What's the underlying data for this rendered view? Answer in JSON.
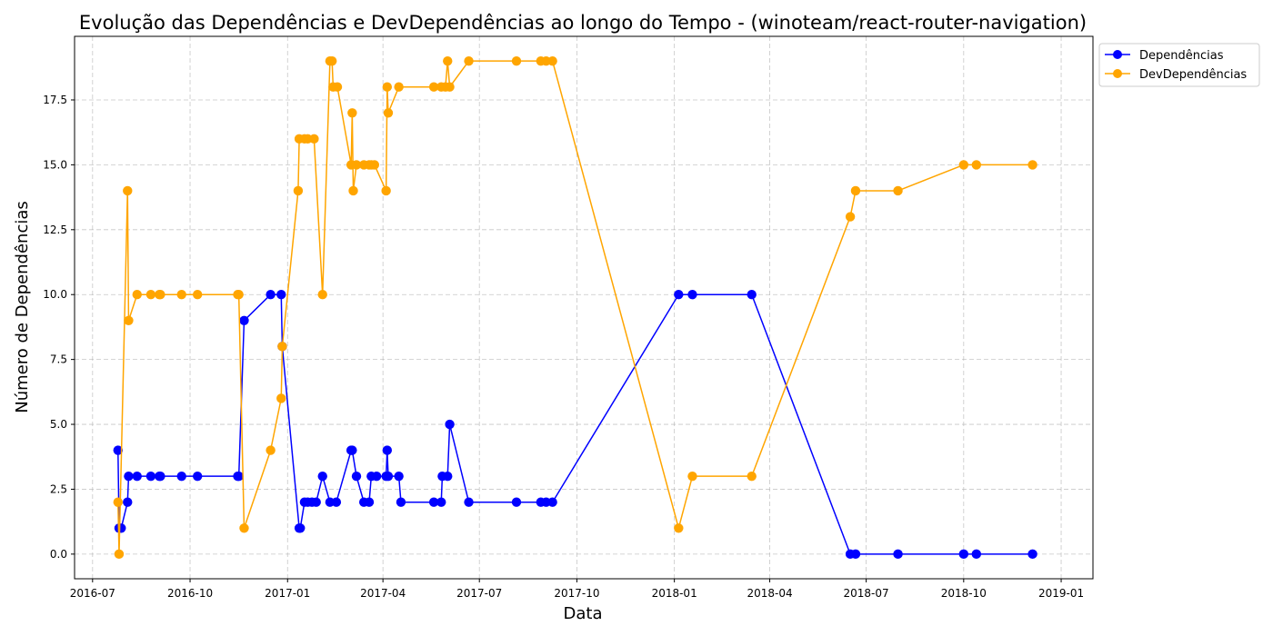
{
  "chart_data": {
    "type": "line",
    "title": "Evolução das Dependências e DevDependências ao longo do Tempo - (winoteam/react-router-navigation)",
    "xlabel": "Data",
    "ylabel": "Número de Dependências",
    "xlim": [
      "2016-06-14",
      "2019-01-31"
    ],
    "ylim": [
      -0.95,
      19.95
    ],
    "x_ticks": [
      "2016-07-01",
      "2016-10-01",
      "2017-01-01",
      "2017-04-01",
      "2017-07-01",
      "2017-10-01",
      "2018-01-01",
      "2018-04-01",
      "2018-07-01",
      "2018-10-01",
      "2019-01-01"
    ],
    "x_tick_labels": [
      "2016-07",
      "2016-10",
      "2017-01",
      "2017-04",
      "2017-07",
      "2017-10",
      "2018-01",
      "2018-04",
      "2018-07",
      "2018-10",
      "2019-01"
    ],
    "y_ticks": [
      0,
      2.5,
      5,
      7.5,
      10,
      12.5,
      15,
      17.5
    ],
    "y_tick_labels": [
      "0.0",
      "2.5",
      "5.0",
      "7.5",
      "10.0",
      "12.5",
      "15.0",
      "17.5"
    ],
    "grid": true,
    "legend_position": "outside-top-right",
    "series": [
      {
        "name": "Dependências",
        "color": "#0000ff",
        "points": [
          [
            "2016-07-25",
            4
          ],
          [
            "2016-07-26",
            1
          ],
          [
            "2016-07-28",
            1
          ],
          [
            "2016-08-03",
            2
          ],
          [
            "2016-08-04",
            3
          ],
          [
            "2016-08-12",
            3
          ],
          [
            "2016-08-25",
            3
          ],
          [
            "2016-09-02",
            3
          ],
          [
            "2016-09-03",
            3
          ],
          [
            "2016-09-23",
            3
          ],
          [
            "2016-10-08",
            3
          ],
          [
            "2016-11-15",
            3
          ],
          [
            "2016-11-16",
            3
          ],
          [
            "2016-11-21",
            9
          ],
          [
            "2016-12-16",
            10
          ],
          [
            "2016-12-26",
            10
          ],
          [
            "2016-12-27",
            8
          ],
          [
            "2017-01-12",
            1
          ],
          [
            "2017-01-13",
            1
          ],
          [
            "2017-01-17",
            2
          ],
          [
            "2017-01-20",
            2
          ],
          [
            "2017-01-24",
            2
          ],
          [
            "2017-01-28",
            2
          ],
          [
            "2017-02-03",
            3
          ],
          [
            "2017-02-10",
            2
          ],
          [
            "2017-02-16",
            2
          ],
          [
            "2017-03-02",
            4
          ],
          [
            "2017-03-03",
            4
          ],
          [
            "2017-03-07",
            3
          ],
          [
            "2017-03-14",
            2
          ],
          [
            "2017-03-19",
            2
          ],
          [
            "2017-03-21",
            3
          ],
          [
            "2017-03-26",
            3
          ],
          [
            "2017-04-04",
            3
          ],
          [
            "2017-04-05",
            4
          ],
          [
            "2017-04-06",
            3
          ],
          [
            "2017-04-16",
            3
          ],
          [
            "2017-04-18",
            2
          ],
          [
            "2017-05-19",
            2
          ],
          [
            "2017-05-26",
            2
          ],
          [
            "2017-05-27",
            3
          ],
          [
            "2017-06-01",
            3
          ],
          [
            "2017-06-03",
            5
          ],
          [
            "2017-06-21",
            2
          ],
          [
            "2017-08-05",
            2
          ],
          [
            "2017-08-28",
            2
          ],
          [
            "2017-09-02",
            2
          ],
          [
            "2017-09-08",
            2
          ],
          [
            "2018-01-05",
            10
          ],
          [
            "2018-01-18",
            10
          ],
          [
            "2018-03-15",
            10
          ],
          [
            "2018-06-16",
            0
          ],
          [
            "2018-06-21",
            0
          ],
          [
            "2018-07-31",
            0
          ],
          [
            "2018-10-01",
            0
          ],
          [
            "2018-10-13",
            0
          ],
          [
            "2018-12-05",
            0
          ]
        ]
      },
      {
        "name": "DevDependências",
        "color": "#ffa500",
        "points": [
          [
            "2016-07-25",
            2
          ],
          [
            "2016-07-26",
            0
          ],
          [
            "2016-08-03",
            14
          ],
          [
            "2016-08-04",
            9
          ],
          [
            "2016-08-12",
            10
          ],
          [
            "2016-08-25",
            10
          ],
          [
            "2016-09-02",
            10
          ],
          [
            "2016-09-03",
            10
          ],
          [
            "2016-09-23",
            10
          ],
          [
            "2016-10-08",
            10
          ],
          [
            "2016-11-15",
            10
          ],
          [
            "2016-11-16",
            10
          ],
          [
            "2016-11-21",
            1
          ],
          [
            "2016-12-16",
            4
          ],
          [
            "2016-12-26",
            6
          ],
          [
            "2016-12-27",
            8
          ],
          [
            "2017-01-11",
            14
          ],
          [
            "2017-01-12",
            16
          ],
          [
            "2017-01-17",
            16
          ],
          [
            "2017-01-20",
            16
          ],
          [
            "2017-01-26",
            16
          ],
          [
            "2017-02-03",
            10
          ],
          [
            "2017-02-10",
            19
          ],
          [
            "2017-02-12",
            19
          ],
          [
            "2017-02-13",
            18
          ],
          [
            "2017-02-17",
            18
          ],
          [
            "2017-03-02",
            15
          ],
          [
            "2017-03-03",
            17
          ],
          [
            "2017-03-04",
            14
          ],
          [
            "2017-03-07",
            15
          ],
          [
            "2017-03-14",
            15
          ],
          [
            "2017-03-19",
            15
          ],
          [
            "2017-03-21",
            15
          ],
          [
            "2017-03-24",
            15
          ],
          [
            "2017-04-04",
            14
          ],
          [
            "2017-04-05",
            18
          ],
          [
            "2017-04-06",
            17
          ],
          [
            "2017-04-16",
            18
          ],
          [
            "2017-05-19",
            18
          ],
          [
            "2017-05-26",
            18
          ],
          [
            "2017-05-30",
            18
          ],
          [
            "2017-06-01",
            19
          ],
          [
            "2017-06-03",
            18
          ],
          [
            "2017-06-21",
            19
          ],
          [
            "2017-08-05",
            19
          ],
          [
            "2017-08-28",
            19
          ],
          [
            "2017-09-02",
            19
          ],
          [
            "2017-09-08",
            19
          ],
          [
            "2018-01-05",
            1
          ],
          [
            "2018-01-18",
            3
          ],
          [
            "2018-03-15",
            3
          ],
          [
            "2018-06-16",
            13
          ],
          [
            "2018-06-21",
            14
          ],
          [
            "2018-07-31",
            14
          ],
          [
            "2018-10-01",
            15
          ],
          [
            "2018-10-13",
            15
          ],
          [
            "2018-12-05",
            15
          ]
        ]
      }
    ]
  }
}
